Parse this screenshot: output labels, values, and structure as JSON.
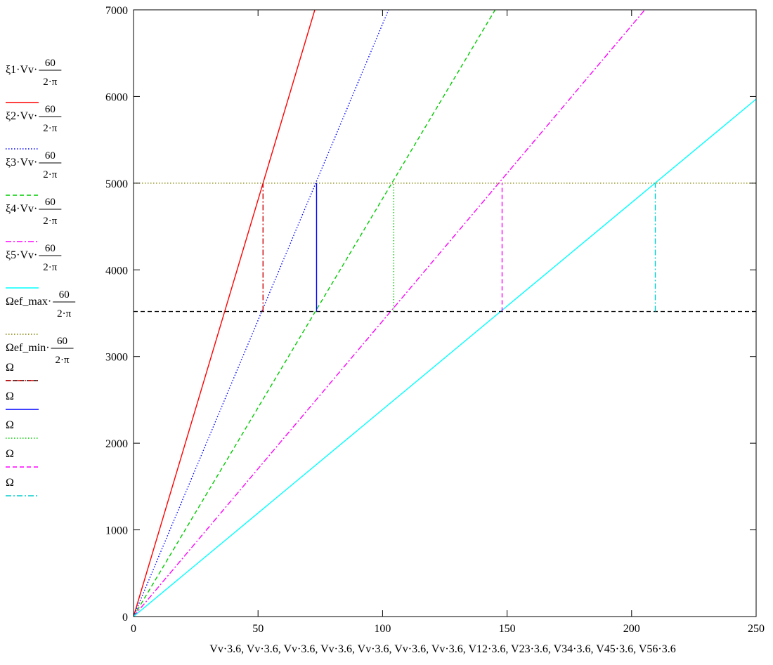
{
  "chart_data": {
    "type": "line",
    "xlabel": "Vv·3.6, Vv·3.6, Vv·3.6, Vv·3.6, Vv·3.6, Vv·3.6, Vv·3.6, V12·3.6, V23·3.6, V34·3.6, V45·3.6, V56·3.6",
    "ylabel": "",
    "xlim": [
      0,
      250
    ],
    "ylim": [
      0,
      7000
    ],
    "x_ticks": [
      "0",
      "50",
      "100",
      "150",
      "200",
      "250"
    ],
    "y_ticks": [
      "0",
      "1000",
      "2000",
      "3000",
      "4000",
      "5000",
      "6000",
      "7000"
    ],
    "x_tick_values": [
      0,
      50,
      100,
      150,
      200,
      250
    ],
    "y_tick_values": [
      0,
      1000,
      2000,
      3000,
      4000,
      5000,
      6000,
      7000
    ],
    "legend_position": "left",
    "series": [
      {
        "name": "ξ1·Vv·",
        "name_frac": [
          "60",
          "2·π"
        ],
        "color": "#ff0000",
        "dash": "solid",
        "kind": "line",
        "x": [
          0,
          72.8
        ],
        "y": [
          0,
          7000
        ]
      },
      {
        "name": "ξ2·Vv·",
        "name_frac": [
          "60",
          "2·π"
        ],
        "color": "#0000ff",
        "dash": "dotted",
        "kind": "line",
        "x": [
          0,
          102.4
        ],
        "y": [
          0,
          7000
        ]
      },
      {
        "name": "ξ3·Vv·",
        "name_frac": [
          "60",
          "2·π"
        ],
        "color": "#00cc00",
        "dash": "dashed",
        "kind": "line",
        "x": [
          0,
          145.2
        ],
        "y": [
          0,
          7000
        ]
      },
      {
        "name": "ξ4·Vv·",
        "name_frac": [
          "60",
          "2·π"
        ],
        "color": "#ff00ff",
        "dash": "dashdot",
        "kind": "line",
        "x": [
          0,
          205.3
        ],
        "y": [
          0,
          7000
        ]
      },
      {
        "name": "ξ5·Vv·",
        "name_frac": [
          "60",
          "2·π"
        ],
        "color": "#00ffff",
        "dash": "solid",
        "kind": "line",
        "x": [
          0,
          250
        ],
        "y": [
          0,
          5970
        ]
      },
      {
        "name": "Ωef_max·",
        "name_frac": [
          "60",
          "2·π"
        ],
        "color": "#808000",
        "dash": "dotted",
        "kind": "line",
        "x": [
          0,
          250
        ],
        "y": [
          5000,
          5000
        ]
      },
      {
        "name": "Ωef_min·",
        "name_frac": [
          "60",
          "2·π"
        ],
        "color": "#000000",
        "dash": "dashed",
        "kind": "line",
        "x": [
          0,
          250
        ],
        "y": [
          3520,
          3520
        ]
      },
      {
        "name": "Ω",
        "name_frac": null,
        "color": "#cc0000",
        "dash": "dashdot",
        "kind": "line",
        "x": [
          52,
          52
        ],
        "y": [
          3520,
          5000
        ]
      },
      {
        "name": "Ω",
        "name_frac": null,
        "color": "#0000ff",
        "dash": "solid",
        "kind": "line",
        "x": [
          73.5,
          73.5
        ],
        "y": [
          3520,
          5000
        ]
      },
      {
        "name": "Ω",
        "name_frac": null,
        "color": "#00cc00",
        "dash": "dotted",
        "kind": "line",
        "x": [
          104.5,
          104.5
        ],
        "y": [
          3520,
          5000
        ]
      },
      {
        "name": "Ω",
        "name_frac": null,
        "color": "#ff00ff",
        "dash": "dashed",
        "kind": "line",
        "x": [
          148,
          148
        ],
        "y": [
          3520,
          5000
        ]
      },
      {
        "name": "Ω",
        "name_frac": null,
        "color": "#00cccc",
        "dash": "dashdot",
        "kind": "line",
        "x": [
          209.5,
          209.5
        ],
        "y": [
          3520,
          5000
        ]
      }
    ]
  }
}
